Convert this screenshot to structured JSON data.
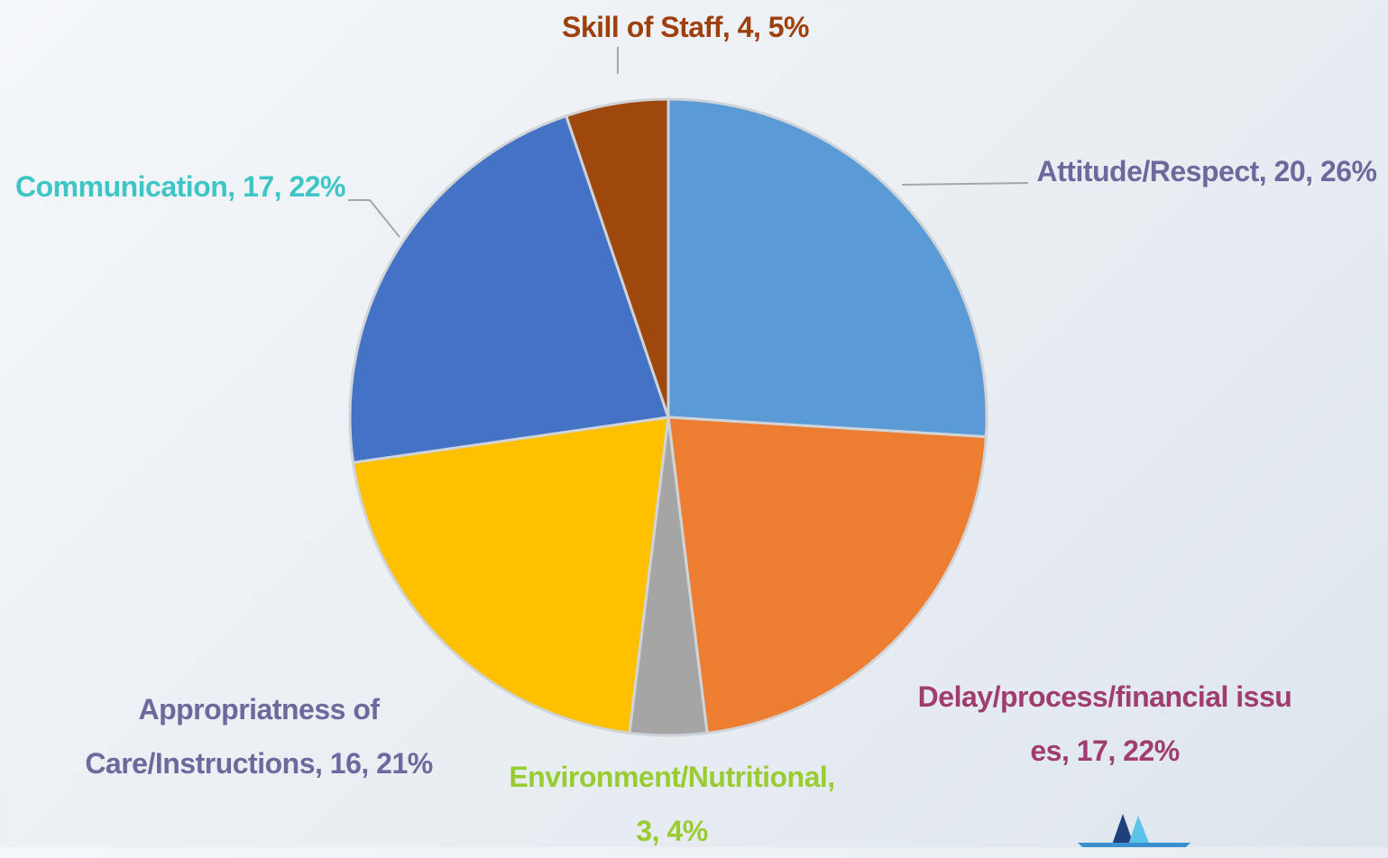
{
  "chart_data": {
    "type": "pie",
    "categories": [
      "Attitude/Respect",
      "Delay/process/financial issues",
      "Environment/Nutritional",
      "Appropriatness of Care/Instructions",
      "Communication",
      "Skill of Staff"
    ],
    "values": [
      20,
      17,
      3,
      16,
      17,
      4
    ],
    "labels": [
      "Attitude/Respect, 20, 26%",
      "Delay/process/financial issues, 17, 22%",
      "Environment/Nutritional, 3, 4%",
      "Appropriatness of Care/Instructions, 16, 21%",
      "Communication, 17, 22%",
      "Skill of Staff, 4, 5%"
    ],
    "colors": [
      "#5b9bd5",
      "#ed7d31",
      "#a5a5a5",
      "#ffc000",
      "#4472c4",
      "#9e480e"
    ],
    "label_colors": [
      "#6a6a9c",
      "#a03c6e",
      "#99cc33",
      "#6a6a9c",
      "#3ec6c6",
      "#9e3f0c"
    ]
  }
}
